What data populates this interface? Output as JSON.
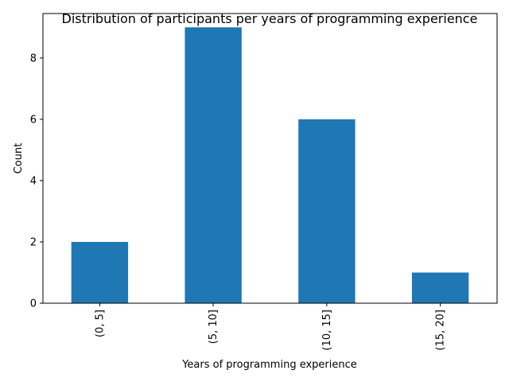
{
  "chart_data": {
    "type": "bar",
    "title": "Distribution of participants per years of programming experience",
    "xlabel": "Years of programming experience",
    "ylabel": "Count",
    "categories": [
      "(0, 5]",
      "(5, 10]",
      "(10, 15]",
      "(15, 20]"
    ],
    "values": [
      2,
      9,
      6,
      1
    ],
    "ylim": [
      0,
      9.45
    ],
    "yticks": [
      0,
      2,
      4,
      6,
      8
    ],
    "ytick_labels": [
      "0",
      "2",
      "4",
      "6",
      "8"
    ],
    "bar_color": "#1f77b4",
    "grid": false,
    "legend": null
  }
}
